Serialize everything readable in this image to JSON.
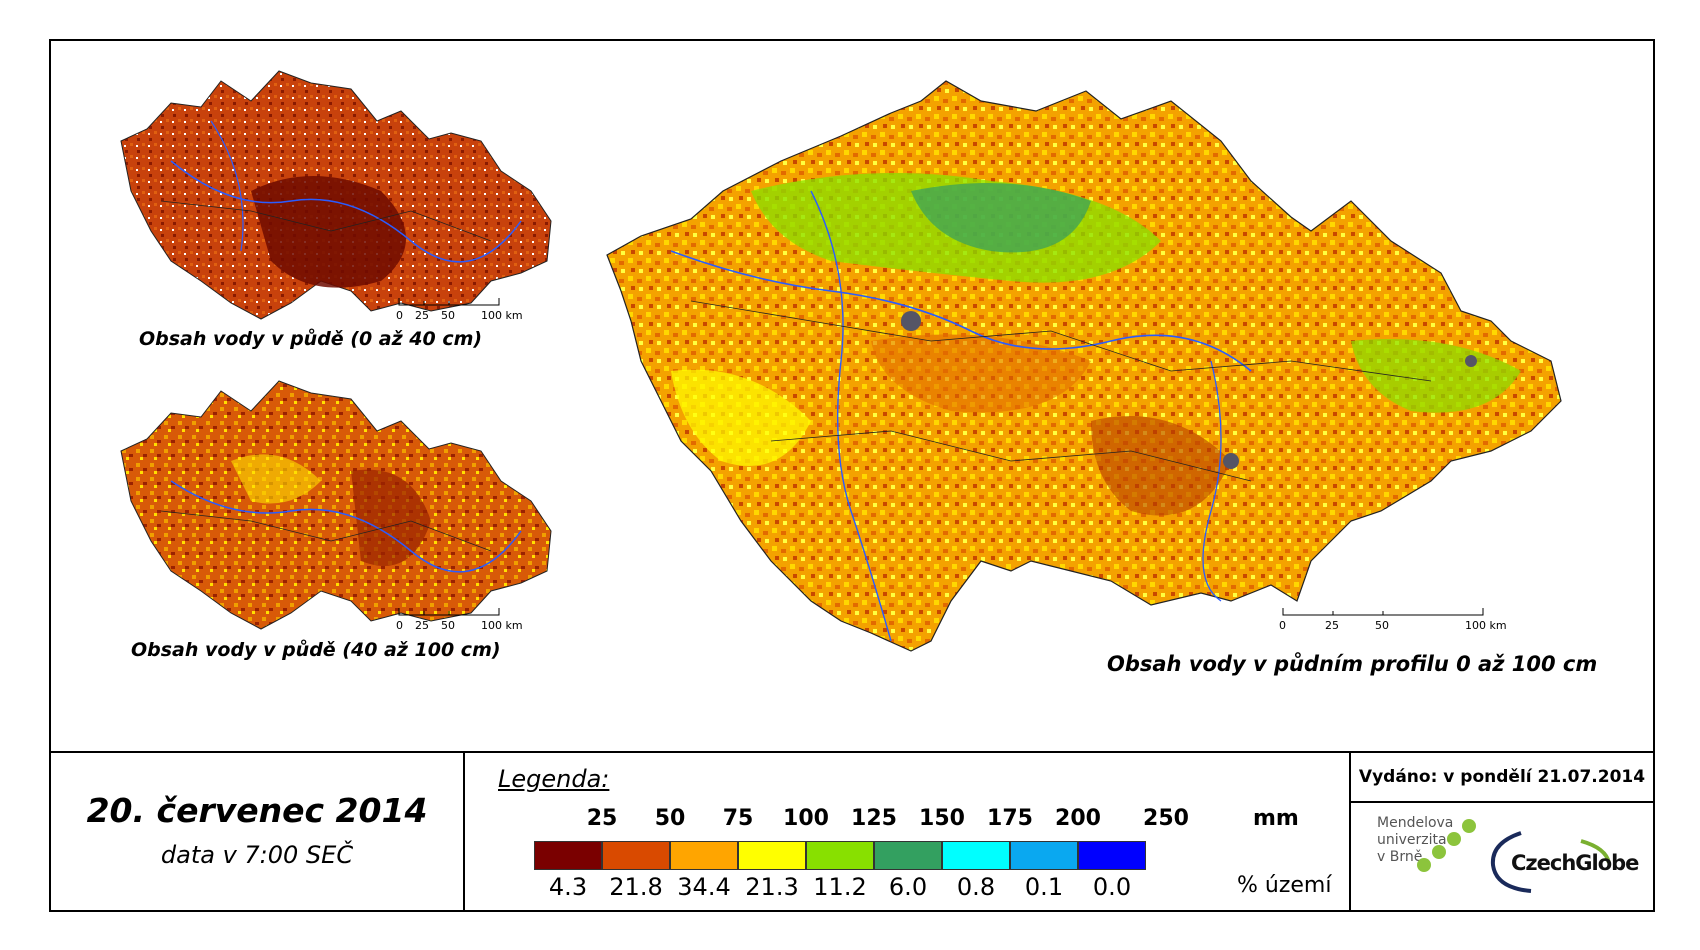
{
  "maps": {
    "top_left_caption": "Obsah vody v půdě (0 až 40 cm)",
    "bottom_left_caption": "Obsah vody v půdě (40 až 100 cm)",
    "main_caption": "Obsah vody v půdním profilu 0 až 100 cm",
    "scale_labels": [
      "0",
      "25",
      "50",
      "100 km"
    ]
  },
  "date": {
    "main": "20. červenec 2014",
    "sub": "data v 7:00 SEČ"
  },
  "legend": {
    "title": "Legenda:",
    "unit_mm": "mm",
    "unit_pct": "% území",
    "ticks": [
      "25",
      "50",
      "75",
      "100",
      "125",
      "150",
      "175",
      "200",
      "250"
    ],
    "classes": [
      {
        "color": "#7a0000",
        "pct": "4.3"
      },
      {
        "color": "#d94a00",
        "pct": "21.8"
      },
      {
        "color": "#ffa500",
        "pct": "34.4"
      },
      {
        "color": "#ffff00",
        "pct": "21.3"
      },
      {
        "color": "#88e000",
        "pct": "11.2"
      },
      {
        "color": "#33a060",
        "pct": "6.0"
      },
      {
        "color": "#00ffff",
        "pct": "0.8"
      },
      {
        "color": "#0aa8f0",
        "pct": "0.1"
      },
      {
        "color": "#0000ff",
        "pct": "0.0"
      }
    ]
  },
  "issued": "Vydáno: v pondělí 21.07.2014",
  "logos": {
    "mendel_line1": "Mendelova",
    "mendel_line2": "univerzita",
    "mendel_line3": "v Brně",
    "czechglobe": "CzechGlobe"
  },
  "colors": {
    "river": "#2a5cff",
    "urban": "#555566",
    "border": "#222222"
  }
}
